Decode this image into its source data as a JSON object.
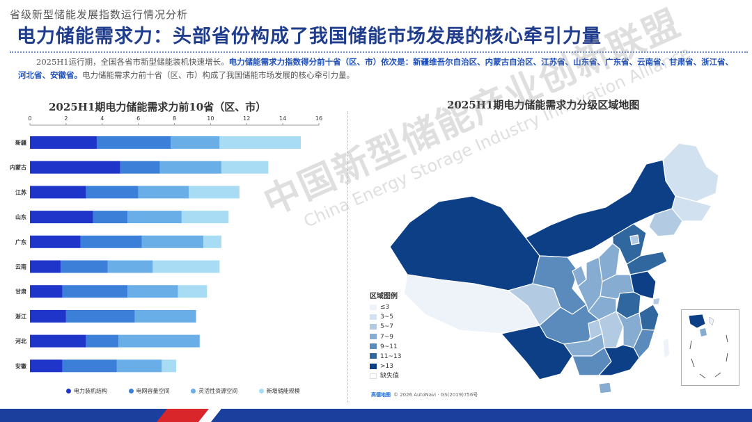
{
  "header": {
    "subtitle": "省级新型储能发展指数运行情况分析",
    "title": "电力储能需求力：头部省份构成了我国储能市场发展的核心牵引力量"
  },
  "intro": {
    "p1": "2025H1运行期，全国各省市新型储能装机快速增长。",
    "p2": "电力储能需求力指数得分前十省（区、市）依次是：新疆维吾尔自治区、内蒙古自治区、江苏省、山东省、广东省、云南省、甘肃省、浙江省、河北省、安徽省。",
    "p3": "电力储能需求力前十省（区、市）构成了我国储能市场发展的核心牵引力量。"
  },
  "chart_data": [
    {
      "type": "bar",
      "orientation": "horizontal",
      "stacked": true,
      "title": "2025H1期电力储能需求力前10省（区、市）",
      "categories": [
        "新疆",
        "内蒙古",
        "江苏",
        "山东",
        "广东",
        "云南",
        "甘肃",
        "浙江",
        "河北",
        "安徽"
      ],
      "xlim": [
        0,
        16
      ],
      "xticks": [
        "0",
        "2",
        "4",
        "6",
        "8",
        "10",
        "12",
        "14",
        "16"
      ],
      "grid": false,
      "legend_position": "bottom",
      "series": [
        {
          "name": "电力装机结构",
          "color": "#1f35c9",
          "values": [
            3.7,
            5.0,
            3.1,
            3.5,
            2.8,
            1.7,
            1.8,
            2.0,
            3.1,
            1.8
          ]
        },
        {
          "name": "电网容量空间",
          "color": "#3b7fd8",
          "values": [
            4.1,
            2.2,
            2.9,
            1.9,
            3.4,
            2.6,
            3.6,
            3.8,
            1.8,
            3.0
          ]
        },
        {
          "name": "灵活性资源空间",
          "color": "#6aaee8",
          "values": [
            2.7,
            3.4,
            2.8,
            3.0,
            3.4,
            2.5,
            2.8,
            3.4,
            4.5,
            2.5
          ]
        },
        {
          "name": "新增储能规模",
          "color": "#a8dcf5",
          "values": [
            4.5,
            2.6,
            2.8,
            2.6,
            1.0,
            3.7,
            1.6,
            0.0,
            0.0,
            0.8
          ]
        }
      ]
    },
    {
      "type": "map",
      "title": "2025H1期电力储能需求力分级区域地图",
      "legend_title": "区域图例",
      "classes": [
        {
          "label": "≤3",
          "color": "#eef3fa"
        },
        {
          "label": "3~5",
          "color": "#d2e1f0"
        },
        {
          "label": "5~7",
          "color": "#b2cbe3"
        },
        {
          "label": "7~9",
          "color": "#86acd1"
        },
        {
          "label": "9~11",
          "color": "#5b8abd"
        },
        {
          "label": "11~13",
          "color": "#30679f"
        },
        {
          "label": ">13",
          "color": "#0d3f86"
        },
        {
          "label": "缺失值",
          "color": "#ffffff"
        }
      ],
      "credit_logo": "高德地图",
      "credit": "© 2026 AutoNavi · GS(2019)756号"
    }
  ],
  "watermark": {
    "cn": "中国新型储能产业创新联盟",
    "en": "China Energy Storage Industry Innovation Alliance"
  }
}
